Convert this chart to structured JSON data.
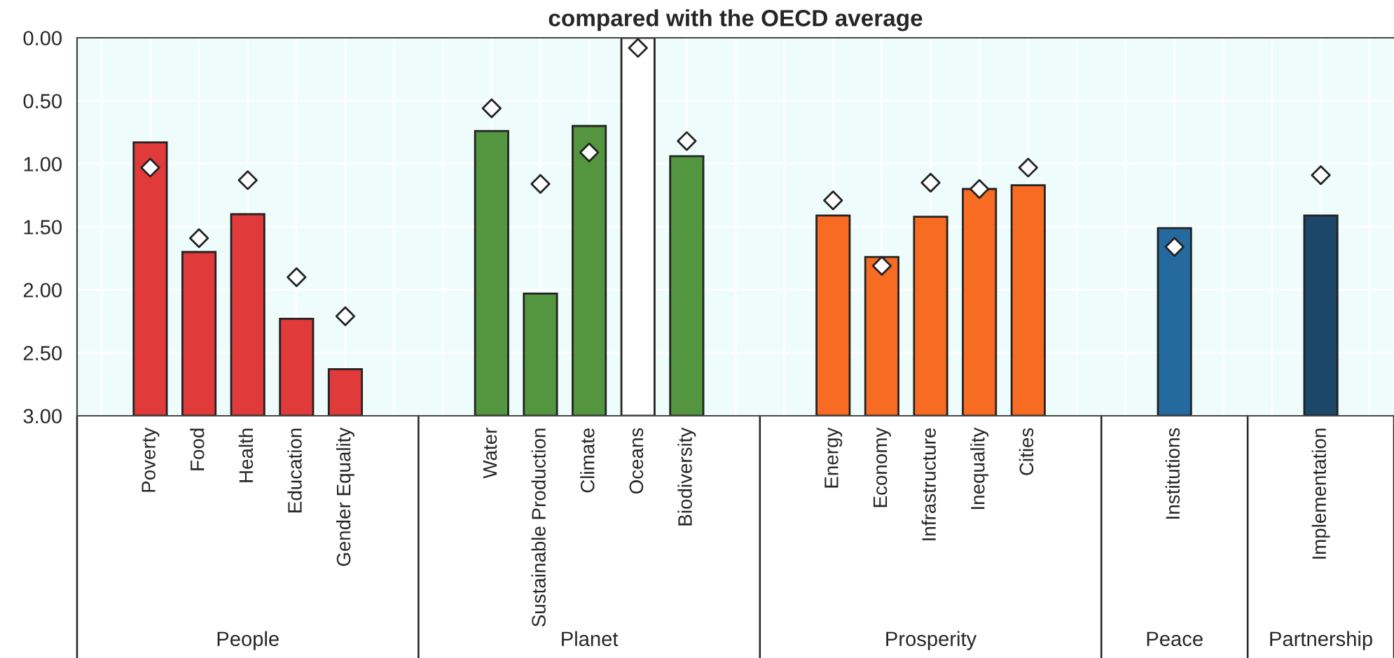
{
  "chart_data": {
    "type": "bar",
    "title": "compared with the OECD average",
    "categories": [
      null,
      "Poverty",
      "Food",
      "Health",
      "Education",
      "Gender Equality",
      null,
      null,
      "Water",
      "Sustainable Production",
      "Climate",
      "Oceans",
      "Biodiversity",
      null,
      null,
      "Energy",
      "Economy",
      "Infrastructure",
      "Inequality",
      "Cities",
      null,
      null,
      "Institutions",
      null,
      null,
      "Implementation",
      null
    ],
    "series": [
      {
        "values": [
          null,
          -2.17,
          -1.3,
          -1.6,
          -0.77,
          -0.37,
          null,
          null,
          -2.26,
          -0.97,
          -2.3,
          -3.0,
          -2.06,
          null,
          null,
          -1.59,
          -1.26,
          -1.58,
          -1.8,
          -1.83,
          null,
          null,
          -1.49,
          null,
          null,
          -1.59,
          null
        ],
        "base": [
          null,
          3,
          3,
          3,
          3,
          3,
          null,
          null,
          3,
          3,
          3,
          3,
          3,
          null,
          null,
          3,
          3,
          3,
          3,
          3,
          null,
          null,
          3,
          null,
          null,
          3,
          null
        ],
        "colors": [
          null,
          "#e03a3a",
          "#e03a3a",
          "#e03a3a",
          "#e03a3a",
          "#e03a3a",
          null,
          null,
          "#54963f",
          "#54963f",
          "#54963f",
          "#ffffff",
          "#54963f",
          null,
          null,
          "#f76b22",
          "#f76b22",
          "#f76b22",
          "#f76b22",
          "#f76b22",
          null,
          null,
          "#256a9e",
          null,
          null,
          "#1b4768",
          null
        ]
      },
      {
        "type": "scatter",
        "color": "#ffffff",
        "marker": "diamond",
        "values": [
          null,
          1.03,
          1.59,
          1.13,
          1.9,
          2.21,
          null,
          null,
          0.56,
          1.16,
          0.91,
          0.08,
          0.82,
          null,
          null,
          1.29,
          1.81,
          1.15,
          1.2,
          1.03,
          null,
          null,
          1.66,
          null,
          null,
          1.09,
          null
        ]
      }
    ],
    "annotations": [
      "People",
      "Planet",
      "Prosperity",
      "Peace",
      "Partnership"
    ],
    "ylim": [
      3.0,
      0.0
    ],
    "yticks": [
      {
        "value": 0,
        "label": "0.00"
      },
      {
        "value": 0.5,
        "label": "0.50"
      },
      {
        "value": 1,
        "label": "1.00"
      },
      {
        "value": 1.5,
        "label": "1.50"
      },
      {
        "value": 2,
        "label": "2.00"
      },
      {
        "value": 2.5,
        "label": "2.50"
      },
      {
        "value": 3,
        "label": "3.00"
      }
    ],
    "grid": true,
    "legend": false
  }
}
